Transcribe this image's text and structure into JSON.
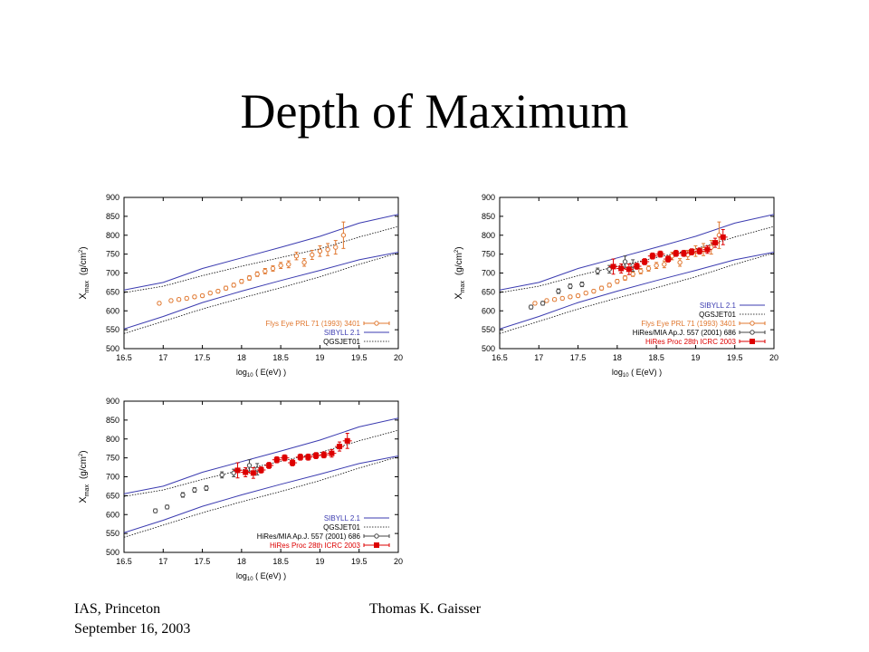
{
  "slide": {
    "title": "Depth of Maximum",
    "footer_left_line1": "IAS, Princeton",
    "footer_left_line2": "September 16, 2003",
    "footer_center": "Thomas K. Gaisser"
  },
  "colors": {
    "sibyll": "#3b3bb0",
    "qgsjet": "#000000",
    "flys_eye": "#e07830",
    "hires_mia": "#444444",
    "hires": "#dd0000"
  },
  "chart_data": [
    {
      "type": "scatter",
      "xlabel_main": "log",
      "xlabel_sub": "10",
      "xlabel_rest": " ( E(eV) )",
      "ylabel_main": "X",
      "ylabel_sub": "max",
      "ylabel_unit": "(g/cm",
      "ylabel_sup": "2",
      "ylabel_close": ")",
      "xlim": [
        16.5,
        20
      ],
      "ylim": [
        500,
        900
      ],
      "xticks": [
        "16.5",
        "17",
        "17.5",
        "18",
        "18.5",
        "19",
        "19.5",
        "20"
      ],
      "yticks": [
        "500",
        "550",
        "600",
        "650",
        "700",
        "750",
        "800",
        "850",
        "900"
      ],
      "legend": [
        {
          "label": "Flys Eye PRL 71 (1993) 3401",
          "style": "flys"
        },
        {
          "label": "SIBYLL 2.1",
          "style": "sibyll"
        },
        {
          "label": "QGSJET01",
          "style": "qgsjet"
        }
      ],
      "series": [
        {
          "name": "Flys Eye PRL 71 (1993) 3401",
          "style": "flys",
          "x": [
            16.95,
            17.1,
            17.2,
            17.3,
            17.4,
            17.5,
            17.6,
            17.7,
            17.8,
            17.9,
            18.0,
            18.1,
            18.2,
            18.3,
            18.4,
            18.5,
            18.6,
            18.7,
            18.8,
            18.9,
            19.0,
            19.1,
            19.2,
            19.3
          ],
          "y": [
            620,
            627,
            630,
            633,
            637,
            640,
            647,
            652,
            660,
            668,
            678,
            687,
            697,
            705,
            712,
            720,
            723,
            745,
            728,
            748,
            758,
            762,
            768,
            800
          ],
          "err": [
            4,
            4,
            4,
            4,
            4,
            4,
            4,
            4,
            5,
            5,
            5,
            6,
            6,
            7,
            7,
            8,
            9,
            10,
            10,
            12,
            14,
            16,
            18,
            35
          ]
        }
      ]
    },
    {
      "type": "scatter",
      "xlabel_main": "log",
      "xlabel_sub": "10",
      "xlabel_rest": " ( E(eV) )",
      "ylabel_main": "X",
      "ylabel_sub": "max",
      "ylabel_unit": "(g/cm",
      "ylabel_sup": "2",
      "ylabel_close": ")",
      "xlim": [
        16.5,
        20
      ],
      "ylim": [
        500,
        900
      ],
      "xticks": [
        "16.5",
        "17",
        "17.5",
        "18",
        "18.5",
        "19",
        "19.5",
        "20"
      ],
      "yticks": [
        "500",
        "550",
        "600",
        "650",
        "700",
        "750",
        "800",
        "850",
        "900"
      ],
      "legend": [
        {
          "label": "SIBYLL 2.1",
          "style": "sibyll"
        },
        {
          "label": "QGSJET01",
          "style": "qgsjet"
        },
        {
          "label": "Flys Eye PRL 71 (1993) 3401",
          "style": "flys"
        },
        {
          "label": "HiRes/MIA Ap.J. 557 (2001) 686",
          "style": "mia"
        },
        {
          "label": "HiRes Proc 28th ICRC 2003",
          "style": "hires"
        }
      ],
      "series": [
        {
          "name": "Flys Eye PRL 71 (1993) 3401",
          "style": "flys",
          "x": [
            16.95,
            17.1,
            17.2,
            17.3,
            17.4,
            17.5,
            17.6,
            17.7,
            17.8,
            17.9,
            18.0,
            18.1,
            18.2,
            18.3,
            18.4,
            18.5,
            18.6,
            18.7,
            18.8,
            18.9,
            19.0,
            19.1,
            19.2,
            19.3
          ],
          "y": [
            620,
            627,
            630,
            633,
            637,
            640,
            647,
            652,
            660,
            668,
            678,
            687,
            697,
            705,
            712,
            720,
            723,
            745,
            728,
            748,
            758,
            762,
            768,
            800
          ],
          "err": [
            4,
            4,
            4,
            4,
            4,
            4,
            4,
            4,
            5,
            5,
            5,
            6,
            6,
            7,
            7,
            8,
            9,
            10,
            10,
            12,
            14,
            16,
            18,
            35
          ]
        },
        {
          "name": "HiRes/MIA Ap.J. 557 (2001) 686",
          "style": "mia",
          "x": [
            16.9,
            17.05,
            17.25,
            17.4,
            17.55,
            17.75,
            17.9,
            18.1,
            18.2
          ],
          "y": [
            610,
            620,
            652,
            665,
            670,
            705,
            710,
            730,
            720
          ],
          "err": [
            5,
            5,
            6,
            6,
            6,
            8,
            10,
            15,
            15
          ]
        },
        {
          "name": "HiRes Proc 28th ICRC 2003",
          "style": "hires",
          "x": [
            17.95,
            18.05,
            18.15,
            18.25,
            18.35,
            18.45,
            18.55,
            18.65,
            18.75,
            18.85,
            18.95,
            19.05,
            19.15,
            19.25,
            19.35
          ],
          "y": [
            717,
            712,
            710,
            718,
            730,
            745,
            750,
            737,
            752,
            752,
            756,
            758,
            762,
            780,
            795
          ],
          "err": [
            20,
            12,
            14,
            8,
            8,
            8,
            8,
            8,
            8,
            8,
            8,
            8,
            10,
            12,
            20
          ]
        }
      ]
    },
    {
      "type": "scatter",
      "xlabel_main": "log",
      "xlabel_sub": "10",
      "xlabel_rest": " ( E(eV) )",
      "ylabel_main": "X",
      "ylabel_sub": "max",
      "ylabel_unit": "(g/cm",
      "ylabel_sup": "2",
      "ylabel_close": ")",
      "xlim": [
        16.5,
        20
      ],
      "ylim": [
        500,
        900
      ],
      "xticks": [
        "16.5",
        "17",
        "17.5",
        "18",
        "18.5",
        "19",
        "19.5",
        "20"
      ],
      "yticks": [
        "500",
        "550",
        "600",
        "650",
        "700",
        "750",
        "800",
        "850",
        "900"
      ],
      "legend": [
        {
          "label": "SIBYLL 2.1",
          "style": "sibyll"
        },
        {
          "label": "QGSJET01",
          "style": "qgsjet"
        },
        {
          "label": "HiRes/MIA Ap.J. 557 (2001) 686",
          "style": "mia"
        },
        {
          "label": "HiRes Proc 28th ICRC 2003",
          "style": "hires"
        }
      ],
      "series": [
        {
          "name": "HiRes/MIA Ap.J. 557 (2001) 686",
          "style": "mia",
          "x": [
            16.9,
            17.05,
            17.25,
            17.4,
            17.55,
            17.75,
            17.9,
            18.1,
            18.2
          ],
          "y": [
            610,
            620,
            652,
            665,
            670,
            705,
            710,
            730,
            720
          ],
          "err": [
            5,
            5,
            6,
            6,
            6,
            8,
            10,
            15,
            15
          ]
        },
        {
          "name": "HiRes Proc 28th ICRC 2003",
          "style": "hires",
          "x": [
            17.95,
            18.05,
            18.15,
            18.25,
            18.35,
            18.45,
            18.55,
            18.65,
            18.75,
            18.85,
            18.95,
            19.05,
            19.15,
            19.25,
            19.35
          ],
          "y": [
            717,
            712,
            710,
            718,
            730,
            745,
            750,
            737,
            752,
            752,
            756,
            758,
            762,
            780,
            795
          ],
          "err": [
            20,
            12,
            14,
            8,
            8,
            8,
            8,
            8,
            8,
            8,
            8,
            8,
            10,
            12,
            20
          ]
        }
      ]
    }
  ],
  "model_curves": {
    "x": [
      16.5,
      17,
      17.5,
      18,
      18.5,
      19,
      19.5,
      20
    ],
    "sibyll_upper": [
      655,
      675,
      712,
      740,
      768,
      797,
      832,
      855
    ],
    "sibyll_lower": [
      552,
      585,
      622,
      652,
      680,
      707,
      735,
      755
    ],
    "qgsjet_upper": [
      648,
      665,
      693,
      718,
      741,
      764,
      795,
      823
    ],
    "qgsjet_lower": [
      540,
      572,
      605,
      634,
      661,
      690,
      723,
      753
    ]
  }
}
